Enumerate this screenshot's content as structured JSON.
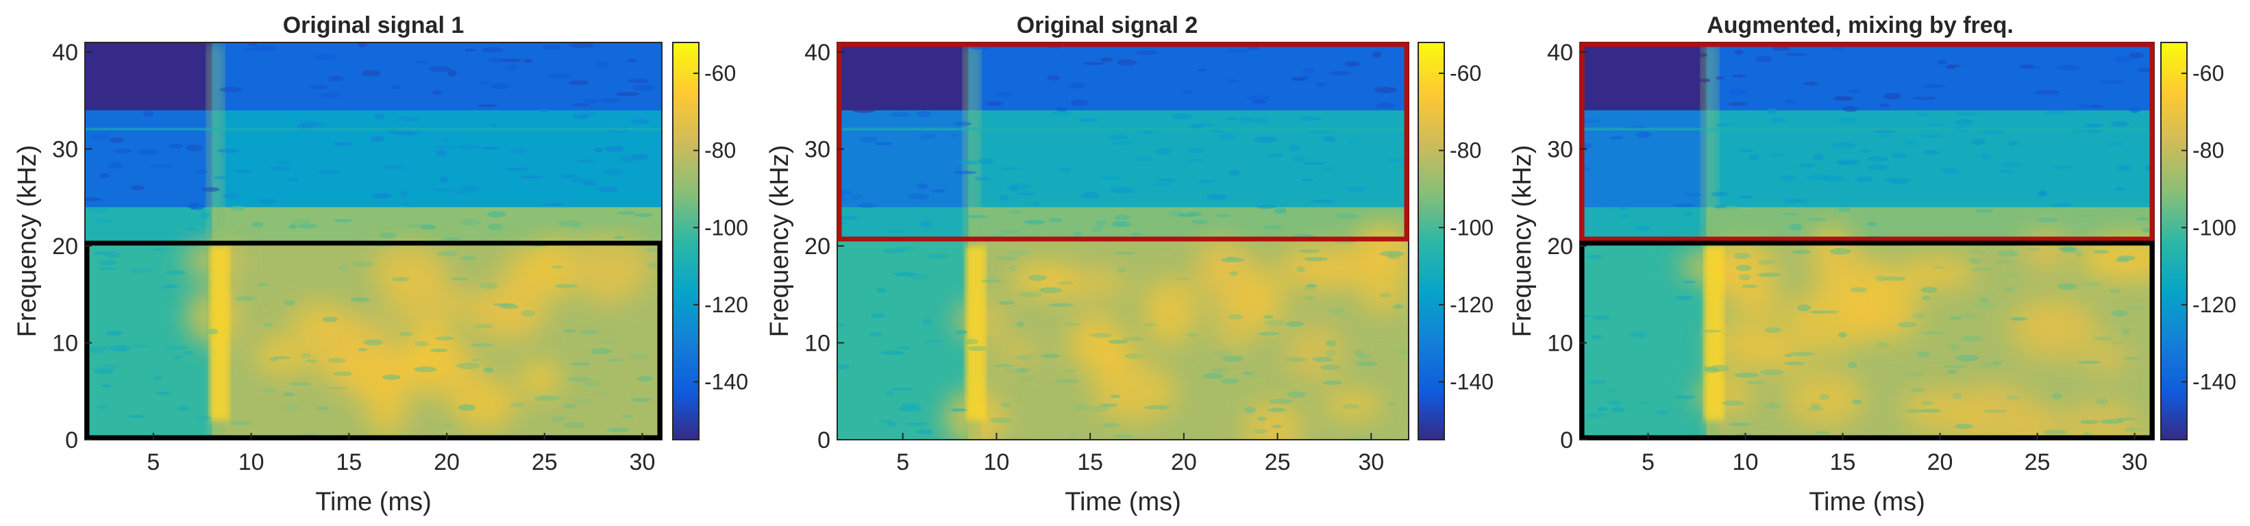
{
  "chart_data": [
    {
      "type": "heatmap",
      "title": "Original signal 1",
      "xlabel": "Time (ms)",
      "ylabel": "Frequency (kHz)",
      "xlim": [
        1.5,
        31
      ],
      "ylim": [
        0,
        41
      ],
      "xticks": [
        5,
        10,
        15,
        20,
        25,
        30
      ],
      "yticks": [
        0,
        10,
        20,
        30,
        40
      ],
      "colorbar": {
        "range": [
          -155,
          -52
        ],
        "ticks": [
          -60,
          -80,
          -100,
          -120,
          -140
        ],
        "colormap": "parula"
      },
      "highlight_boxes": [
        {
          "time_range": [
            1.5,
            31
          ],
          "freq_range": [
            0,
            20.5
          ],
          "color": "#000000"
        }
      ],
      "onset_ms": 8.0,
      "bands": [
        {
          "freq_range": [
            0,
            20.5
          ],
          "level_db": -85
        },
        {
          "freq_range": [
            20.5,
            24
          ],
          "level_db": -90
        },
        {
          "freq_range": [
            24,
            34
          ],
          "level_db": -118
        },
        {
          "freq_range": [
            34,
            41
          ],
          "level_db": -138
        }
      ]
    },
    {
      "type": "heatmap",
      "title": "Original signal 2",
      "xlabel": "Time (ms)",
      "ylabel": "Frequency (kHz)",
      "xlim": [
        1.5,
        32
      ],
      "ylim": [
        0,
        41
      ],
      "xticks": [
        5,
        10,
        15,
        20,
        25,
        30
      ],
      "yticks": [
        0,
        10,
        20,
        30,
        40
      ],
      "colorbar": {
        "range": [
          -155,
          -52
        ],
        "ticks": [
          -60,
          -80,
          -100,
          -120,
          -140
        ],
        "colormap": "parula"
      },
      "highlight_boxes": [
        {
          "time_range": [
            1.5,
            32
          ],
          "freq_range": [
            20.5,
            41
          ],
          "color": "#b01010"
        }
      ],
      "onset_ms": 8.5,
      "bands": [
        {
          "freq_range": [
            0,
            20.5
          ],
          "level_db": -85
        },
        {
          "freq_range": [
            20.5,
            24
          ],
          "level_db": -92
        },
        {
          "freq_range": [
            24,
            34
          ],
          "level_db": -112
        },
        {
          "freq_range": [
            34,
            41
          ],
          "level_db": -138
        }
      ]
    },
    {
      "type": "heatmap",
      "title": "Augmented, mixing by freq.",
      "xlabel": "Time (ms)",
      "ylabel": "Frequency (kHz)",
      "xlim": [
        1.5,
        31
      ],
      "ylim": [
        0,
        41
      ],
      "xticks": [
        5,
        10,
        15,
        20,
        25,
        30
      ],
      "yticks": [
        0,
        10,
        20,
        30,
        40
      ],
      "colorbar": {
        "range": [
          -155,
          -52
        ],
        "ticks": [
          -60,
          -80,
          -100,
          -120,
          -140
        ],
        "colormap": "parula"
      },
      "highlight_boxes": [
        {
          "time_range": [
            1.5,
            31
          ],
          "freq_range": [
            20.5,
            41
          ],
          "color": "#b01010"
        },
        {
          "time_range": [
            1.5,
            31
          ],
          "freq_range": [
            0,
            20.5
          ],
          "color": "#000000"
        }
      ],
      "onset_ms": 8.0,
      "bands": [
        {
          "freq_range": [
            0,
            20.5
          ],
          "level_db": -85
        },
        {
          "freq_range": [
            20.5,
            24
          ],
          "level_db": -92
        },
        {
          "freq_range": [
            24,
            34
          ],
          "level_db": -112
        },
        {
          "freq_range": [
            34,
            41
          ],
          "level_db": -138
        }
      ]
    }
  ]
}
